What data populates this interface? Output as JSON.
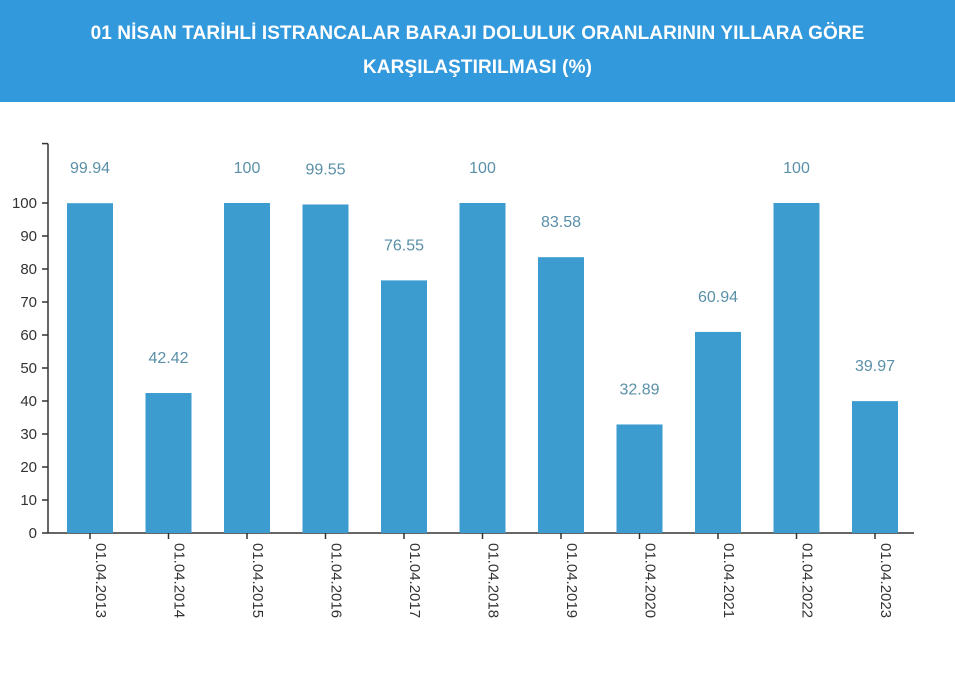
{
  "header": {
    "title": "01 NİSAN TARİHLİ ISTRANCALAR BARAJI DOLULUK ORANLARININ YILLARA GÖRE KARŞILAŞTIRILMASI (%)"
  },
  "colors": {
    "header_bg": "#3399dd",
    "bar": "#3d9ccf",
    "axis": "#333333",
    "data_label": "#5a8fa8"
  },
  "chart_data": {
    "type": "bar",
    "title": "01 NİSAN TARİHLİ ISTRANCALAR BARAJI DOLULUK ORANLARININ YILLARA GÖRE KARŞILAŞTIRILMASI (%)",
    "categories": [
      "01.04.2013",
      "01.04.2014",
      "01.04.2015",
      "01.04.2016",
      "01.04.2017",
      "01.04.2018",
      "01.04.2019",
      "01.04.2020",
      "01.04.2021",
      "01.04.2022",
      "01.04.2023"
    ],
    "values": [
      99.94,
      42.42,
      100,
      99.55,
      76.55,
      100,
      83.58,
      32.89,
      60.94,
      100,
      39.97
    ],
    "data_labels": [
      "99.94",
      "42.42",
      "100",
      "99.55",
      "76.55",
      "100",
      "83.58",
      "32.89",
      "60.94",
      "100",
      "39.97"
    ],
    "yticks": [
      0,
      10,
      20,
      30,
      40,
      50,
      60,
      70,
      80,
      90,
      100
    ],
    "ylim": [
      0,
      118
    ],
    "xlabel": "",
    "ylabel": "",
    "grid": false,
    "legend": "none"
  }
}
